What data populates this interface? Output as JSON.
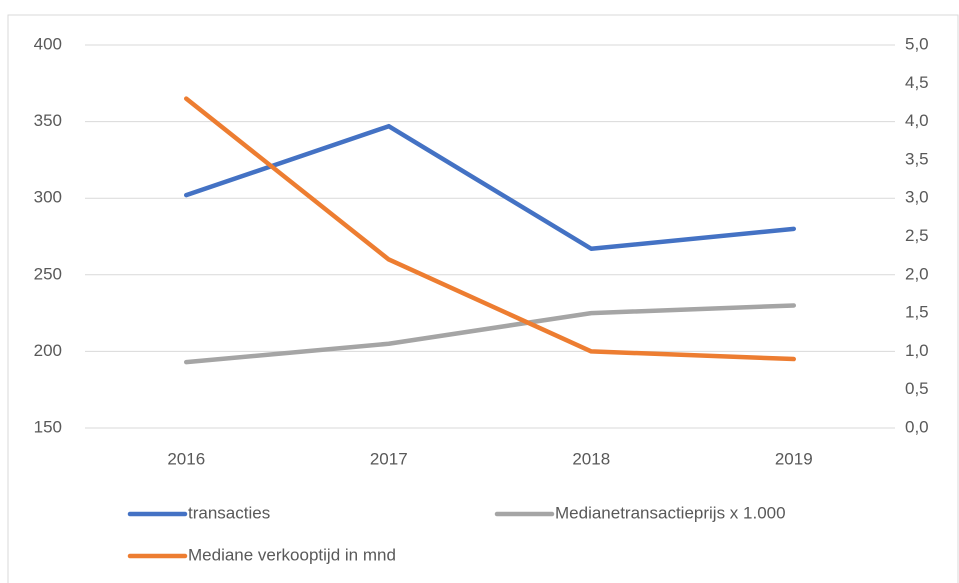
{
  "chart_data": {
    "type": "line",
    "categories": [
      "2016",
      "2017",
      "2018",
      "2019"
    ],
    "series": [
      {
        "name": "transacties",
        "color": "#4472c4",
        "values": [
          302,
          347,
          267,
          280
        ]
      },
      {
        "name": "Medianetransactieprijs x 1.000",
        "color": "#a5a5a5",
        "values": [
          193,
          205,
          225,
          230
        ]
      },
      {
        "name": "Mediane verkooptijd in mnd",
        "color": "#ed7d31",
        "axis": "y2",
        "values": [
          4.3,
          2.2,
          1.0,
          0.9
        ]
      }
    ],
    "ylim": [
      150,
      400
    ],
    "yticks": [
      150,
      200,
      250,
      300,
      350,
      400
    ],
    "y2lim": [
      0,
      5
    ],
    "y2ticks": [
      {
        "value": 0,
        "label": "0,0"
      },
      {
        "value": 0.5,
        "label": "0,5"
      },
      {
        "value": 1,
        "label": "1,0"
      },
      {
        "value": 1.5,
        "label": "1,5"
      },
      {
        "value": 2,
        "label": "2,0"
      },
      {
        "value": 2.5,
        "label": "2,5"
      },
      {
        "value": 3,
        "label": "3,0"
      },
      {
        "value": 3.5,
        "label": "3,5"
      },
      {
        "value": 4,
        "label": "4,0"
      },
      {
        "value": 4.5,
        "label": "4,5"
      },
      {
        "value": 5,
        "label": "5,0"
      }
    ],
    "grid": true,
    "legend": "bottom"
  }
}
